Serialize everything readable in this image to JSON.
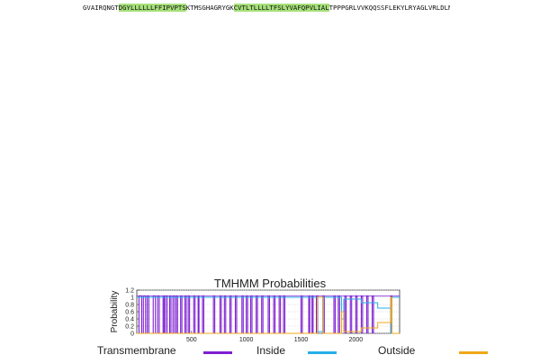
{
  "sequence": {
    "lines": [
      [
        {
          "t": "GVAIRQNGT",
          "c": ""
        },
        {
          "t": "DGYLLLLLLFFIPVPTS",
          "c": "tm"
        },
        {
          "t": "KTMSGHAGRYGK",
          "c": ""
        },
        {
          "t": "CVTLTLLLLTFSLYVAFQPVLIAL",
          "c": "tm"
        },
        {
          "t": "TPPPGRLVVKQQSSFLEKYLRYAGLVRLDLNWLDCN",
          "c": ""
        }
      ]
    ]
  },
  "chart_data": {
    "type": "line",
    "title": "TMHMM Probabilities",
    "xlabel": "",
    "ylabel": "Probability",
    "xlim": [
      0,
      2400
    ],
    "ylim": [
      0,
      1.2
    ],
    "xticks": [
      500,
      1000,
      1500,
      2000
    ],
    "yticks": [
      0,
      0.2,
      0.4,
      0.6,
      0.8,
      1,
      1.2
    ],
    "grid": true,
    "legend_position": "bottom",
    "series": [
      {
        "name": "Transmembrane",
        "color": "#7e1fd1",
        "kind": "spikes",
        "segments": [
          [
            20,
            45
          ],
          [
            60,
            80
          ],
          [
            95,
            110
          ],
          [
            150,
            170
          ],
          [
            190,
            205
          ],
          [
            240,
            250
          ],
          [
            262,
            277
          ],
          [
            300,
            312
          ],
          [
            330,
            345
          ],
          [
            360,
            372
          ],
          [
            400,
            412
          ],
          [
            440,
            452
          ],
          [
            470,
            482
          ],
          [
            520,
            532
          ],
          [
            560,
            568
          ],
          [
            600,
            612
          ],
          [
            700,
            712
          ],
          [
            760,
            772
          ],
          [
            800,
            812
          ],
          [
            850,
            862
          ],
          [
            900,
            912
          ],
          [
            960,
            972
          ],
          [
            1000,
            1012
          ],
          [
            1040,
            1052
          ],
          [
            1090,
            1102
          ],
          [
            1140,
            1152
          ],
          [
            1200,
            1212
          ],
          [
            1250,
            1262
          ],
          [
            1300,
            1312
          ],
          [
            1340,
            1352
          ],
          [
            1500,
            1512
          ],
          [
            1570,
            1580
          ],
          [
            1600,
            1610
          ],
          [
            1640,
            1652
          ],
          [
            1700,
            1712
          ],
          [
            1800,
            1812
          ],
          [
            1840,
            1852
          ],
          [
            1900,
            1912
          ],
          [
            1950,
            1962
          ],
          [
            2000,
            2012
          ],
          [
            2050,
            2062
          ],
          [
            2100,
            2112
          ],
          [
            2150,
            2162
          ],
          [
            2320,
            2330
          ]
        ]
      },
      {
        "name": "Inside",
        "color": "#27aee8",
        "kind": "step",
        "points": [
          [
            0,
            1.0
          ],
          [
            1650,
            1.0
          ],
          [
            1650,
            0.05
          ],
          [
            1700,
            0.05
          ],
          [
            1700,
            1.0
          ],
          [
            1870,
            1.0
          ],
          [
            1870,
            0.4
          ],
          [
            1890,
            0.4
          ],
          [
            1890,
            0.95
          ],
          [
            2050,
            0.95
          ],
          [
            2050,
            0.85
          ],
          [
            2200,
            0.85
          ],
          [
            2200,
            0.7
          ],
          [
            2320,
            0.7
          ],
          [
            2320,
            0.0
          ],
          [
            2330,
            0.0
          ],
          [
            2330,
            1.0
          ],
          [
            2400,
            1.0
          ]
        ]
      },
      {
        "name": "Outside",
        "color": "#f0a818",
        "kind": "step",
        "points": [
          [
            0,
            0.0
          ],
          [
            1650,
            0.0
          ],
          [
            1650,
            1.0
          ],
          [
            1700,
            1.0
          ],
          [
            1700,
            0.0
          ],
          [
            1870,
            0.0
          ],
          [
            1870,
            0.6
          ],
          [
            1890,
            0.6
          ],
          [
            1890,
            0.05
          ],
          [
            2050,
            0.05
          ],
          [
            2050,
            0.15
          ],
          [
            2200,
            0.15
          ],
          [
            2200,
            0.3
          ],
          [
            2320,
            0.3
          ],
          [
            2320,
            1.0
          ],
          [
            2330,
            1.0
          ],
          [
            2330,
            0.0
          ],
          [
            2400,
            0.0
          ]
        ]
      }
    ]
  }
}
